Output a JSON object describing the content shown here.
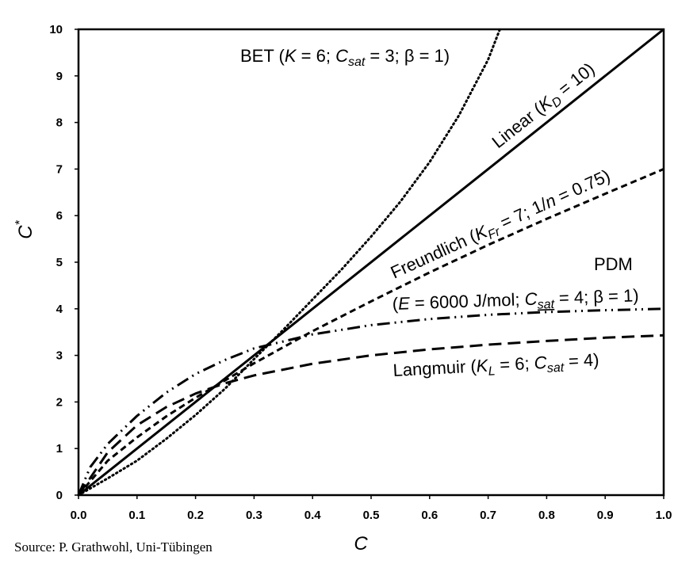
{
  "source": "Source: P. Grathwohl, Uni-Tübingen",
  "chart_data": {
    "type": "line",
    "xlabel": "C",
    "ylabel": "C*",
    "xlim": [
      0,
      1
    ],
    "ylim": [
      0,
      10
    ],
    "x_ticks": [
      "0.0",
      "0.1",
      "0.2",
      "0.3",
      "0.4",
      "0.5",
      "0.6",
      "0.7",
      "0.8",
      "0.9",
      "1.0"
    ],
    "y_ticks": [
      "0",
      "1",
      "2",
      "3",
      "4",
      "5",
      "6",
      "7",
      "8",
      "9",
      "10"
    ],
    "grid": false,
    "series": [
      {
        "key": "bet",
        "label": "BET (K = 6; Csat = 3; β = 1)",
        "style": "dotted",
        "x": [
          0,
          0.05,
          0.1,
          0.15,
          0.2,
          0.25,
          0.3,
          0.35,
          0.4,
          0.45,
          0.5,
          0.55,
          0.6,
          0.65,
          0.7,
          0.72
        ],
        "y": [
          0,
          0.36,
          0.74,
          1.21,
          1.72,
          2.28,
          2.92,
          3.55,
          4.2,
          4.85,
          5.55,
          6.3,
          7.15,
          8.15,
          9.35,
          10.0
        ]
      },
      {
        "key": "linear",
        "label": "Linear (KD = 10)",
        "style": "solid",
        "x": [
          0,
          1
        ],
        "y": [
          0,
          10
        ]
      },
      {
        "key": "freundlich",
        "label": "Freundlich (KFr = 7; 1/n = 0.75)",
        "style": "dashed",
        "x": [
          0,
          0.05,
          0.1,
          0.15,
          0.2,
          0.3,
          0.4,
          0.5,
          0.6,
          0.7,
          0.8,
          0.9,
          1.0
        ],
        "y": [
          0,
          0.74,
          1.24,
          1.69,
          2.09,
          2.83,
          3.52,
          4.16,
          4.78,
          5.37,
          5.93,
          6.47,
          7.0
        ]
      },
      {
        "key": "pdm",
        "label": "PDM (E = 6000 J/mol; Csat = 4; β = 1)",
        "style": "dash-dot-dot",
        "x": [
          0,
          0.02,
          0.05,
          0.1,
          0.15,
          0.2,
          0.25,
          0.3,
          0.35,
          0.4,
          0.45,
          0.5,
          0.6,
          0.7,
          0.8,
          0.9,
          1.0
        ],
        "y": [
          0,
          0.6,
          1.1,
          1.7,
          2.2,
          2.6,
          2.9,
          3.15,
          3.3,
          3.45,
          3.55,
          3.65,
          3.78,
          3.87,
          3.93,
          3.97,
          4.0
        ]
      },
      {
        "key": "langmuir",
        "label": "Langmuir (KL = 6; Csat = 4)",
        "style": "long-dashed",
        "x": [
          0,
          0.05,
          0.1,
          0.15,
          0.2,
          0.25,
          0.3,
          0.4,
          0.5,
          0.6,
          0.7,
          0.8,
          0.9,
          1.0
        ],
        "y": [
          0,
          0.92,
          1.5,
          1.89,
          2.18,
          2.4,
          2.57,
          2.82,
          3.0,
          3.13,
          3.23,
          3.31,
          3.38,
          3.43
        ]
      }
    ]
  }
}
